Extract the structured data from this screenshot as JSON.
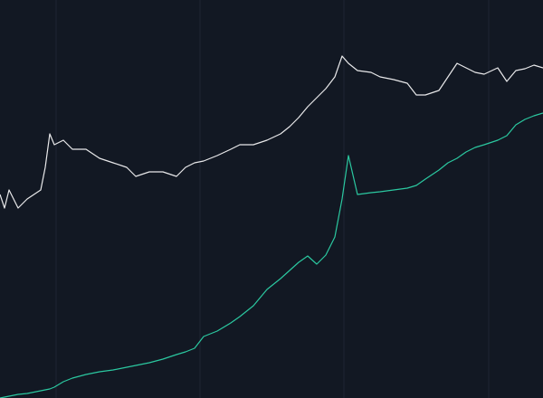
{
  "chart_data": {
    "type": "line",
    "x": [
      0,
      5,
      10,
      20,
      30,
      45,
      50,
      55,
      60,
      70,
      80,
      95,
      110,
      125,
      140,
      150,
      165,
      180,
      195,
      205,
      215,
      225,
      240,
      255,
      265,
      280,
      295,
      310,
      320,
      330,
      340,
      350,
      360,
      370,
      378,
      385,
      395,
      410,
      420,
      435,
      450,
      460,
      470,
      485,
      495,
      505,
      515,
      525,
      535,
      550,
      560,
      570,
      580,
      590,
      600
    ],
    "series": [
      {
        "color": "#e8e8ea",
        "values": [
          225,
          210,
          230,
          210,
          220,
          230,
          255,
          292,
          280,
          285,
          275,
          275,
          265,
          260,
          255,
          245,
          250,
          250,
          245,
          255,
          260,
          262,
          268,
          275,
          280,
          280,
          285,
          292,
          300,
          310,
          322,
          332,
          342,
          355,
          378,
          370,
          362,
          360,
          355,
          352,
          348,
          335,
          335,
          340,
          355,
          370,
          365,
          360,
          358,
          365,
          350,
          362,
          364,
          368,
          365
        ]
      },
      {
        "color": "#2bc8a0",
        "values": [
          0,
          1,
          2,
          4,
          5,
          8,
          9,
          10,
          12,
          18,
          22,
          26,
          29,
          31,
          34,
          36,
          39,
          43,
          48,
          51,
          55,
          68,
          74,
          83,
          90,
          102,
          120,
          132,
          141,
          150,
          157,
          148,
          158,
          178,
          220,
          268,
          225,
          227,
          228,
          230,
          232,
          235,
          242,
          252,
          260,
          265,
          272,
          277,
          280,
          285,
          290,
          302,
          308,
          312,
          315
        ]
      }
    ],
    "xlim": [
      0,
      600
    ],
    "ylim": [
      0,
      440
    ],
    "xticks": [
      62,
      221,
      380,
      540
    ],
    "grid": true
  }
}
